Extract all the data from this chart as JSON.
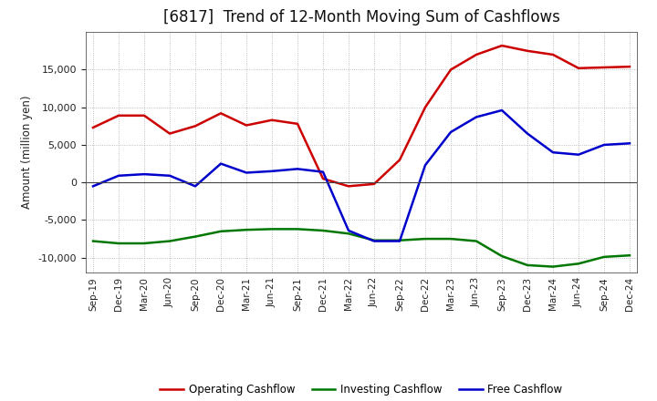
{
  "title": "[6817]  Trend of 12-Month Moving Sum of Cashflows",
  "ylabel": "Amount (million yen)",
  "background_color": "#ffffff",
  "grid_color": "#999999",
  "x_labels": [
    "Sep-19",
    "Dec-19",
    "Mar-20",
    "Jun-20",
    "Sep-20",
    "Dec-20",
    "Mar-21",
    "Jun-21",
    "Sep-21",
    "Dec-21",
    "Mar-22",
    "Jun-22",
    "Sep-22",
    "Dec-22",
    "Mar-23",
    "Jun-23",
    "Sep-23",
    "Dec-23",
    "Mar-24",
    "Jun-24",
    "Sep-24",
    "Dec-24"
  ],
  "operating": [
    7300,
    8900,
    8900,
    6500,
    7500,
    9200,
    7600,
    8300,
    7800,
    500,
    -500,
    -200,
    3000,
    10000,
    15000,
    17000,
    18200,
    17500,
    17000,
    15200,
    15300,
    15400
  ],
  "investing": [
    -7800,
    -8100,
    -8100,
    -7800,
    -7200,
    -6500,
    -6300,
    -6200,
    -6200,
    -6400,
    -6800,
    -7700,
    -7700,
    -7500,
    -7500,
    -7800,
    -9800,
    -11000,
    -11200,
    -10800,
    -9900,
    -9700
  ],
  "free": [
    -500,
    900,
    1100,
    900,
    -500,
    2500,
    1300,
    1500,
    1800,
    1400,
    -6400,
    -7800,
    -7800,
    2300,
    6700,
    8700,
    9600,
    6500,
    4000,
    3700,
    5000,
    5200
  ],
  "ylim": [
    -12000,
    20000
  ],
  "yticks": [
    -10000,
    -5000,
    0,
    5000,
    10000,
    15000
  ],
  "operating_color": "#cc0000",
  "investing_color": "#007700",
  "free_color": "#0000cc",
  "linewidth": 1.8,
  "title_fontsize": 12,
  "legend_labels": [
    "Operating Cashflow",
    "Investing Cashflow",
    "Free Cashflow"
  ]
}
